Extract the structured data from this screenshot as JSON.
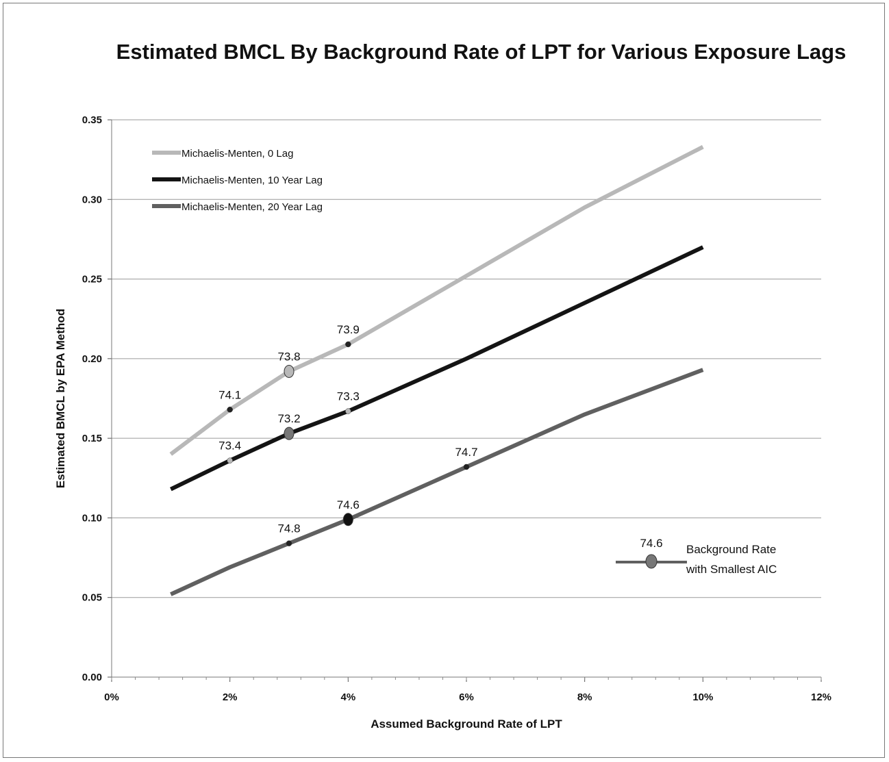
{
  "chart_data": {
    "type": "line",
    "title": "Estimated BMCL By Background Rate of LPT for Various Exposure Lags",
    "xlabel": "Assumed Background Rate of LPT",
    "ylabel": "Estimated BMCL by EPA Method",
    "xlim": [
      0,
      12
    ],
    "ylim": [
      0,
      0.35
    ],
    "x_tick_labels": [
      "0%",
      "2%",
      "4%",
      "6%",
      "8%",
      "10%",
      "12%"
    ],
    "y_tick_labels": [
      "0.00",
      "0.05",
      "0.10",
      "0.15",
      "0.20",
      "0.25",
      "0.30",
      "0.35"
    ],
    "grid": "horizontal",
    "legend_position": "top-left",
    "series": [
      {
        "name": "Michaelis-Menten, 0 Lag",
        "color": "#b8b8b8",
        "x": [
          1,
          2,
          3,
          4,
          6,
          8,
          10
        ],
        "y": [
          0.14,
          0.168,
          0.192,
          0.209,
          0.252,
          0.295,
          0.333
        ],
        "labels": [
          {
            "x": 2,
            "y": 0.168,
            "text": "74.1"
          },
          {
            "x": 3,
            "y": 0.192,
            "text": "73.8",
            "smallest_aic": true
          },
          {
            "x": 4,
            "y": 0.209,
            "text": "73.9"
          }
        ]
      },
      {
        "name": "Michaelis-Menten, 10 Year Lag",
        "color": "#141414",
        "x": [
          1,
          2,
          3,
          4,
          6,
          8,
          10
        ],
        "y": [
          0.118,
          0.136,
          0.153,
          0.167,
          0.2,
          0.235,
          0.27
        ],
        "labels": [
          {
            "x": 2,
            "y": 0.136,
            "text": "73.4"
          },
          {
            "x": 3,
            "y": 0.153,
            "text": "73.2",
            "smallest_aic": true
          },
          {
            "x": 4,
            "y": 0.167,
            "text": "73.3"
          }
        ]
      },
      {
        "name": "Michaelis-Menten, 20 Year Lag",
        "color": "#606060",
        "x": [
          1,
          2,
          3,
          4,
          6,
          8,
          10
        ],
        "y": [
          0.052,
          0.069,
          0.084,
          0.099,
          0.132,
          0.165,
          0.193
        ],
        "labels": [
          {
            "x": 3,
            "y": 0.084,
            "text": "74.8"
          },
          {
            "x": 4,
            "y": 0.099,
            "text": "74.6",
            "smallest_aic": true
          },
          {
            "x": 6,
            "y": 0.132,
            "text": "74.7"
          }
        ]
      }
    ],
    "annotation": {
      "value_label": "74.6",
      "text_lines": [
        "Background Rate",
        "with Smallest AIC"
      ]
    }
  }
}
